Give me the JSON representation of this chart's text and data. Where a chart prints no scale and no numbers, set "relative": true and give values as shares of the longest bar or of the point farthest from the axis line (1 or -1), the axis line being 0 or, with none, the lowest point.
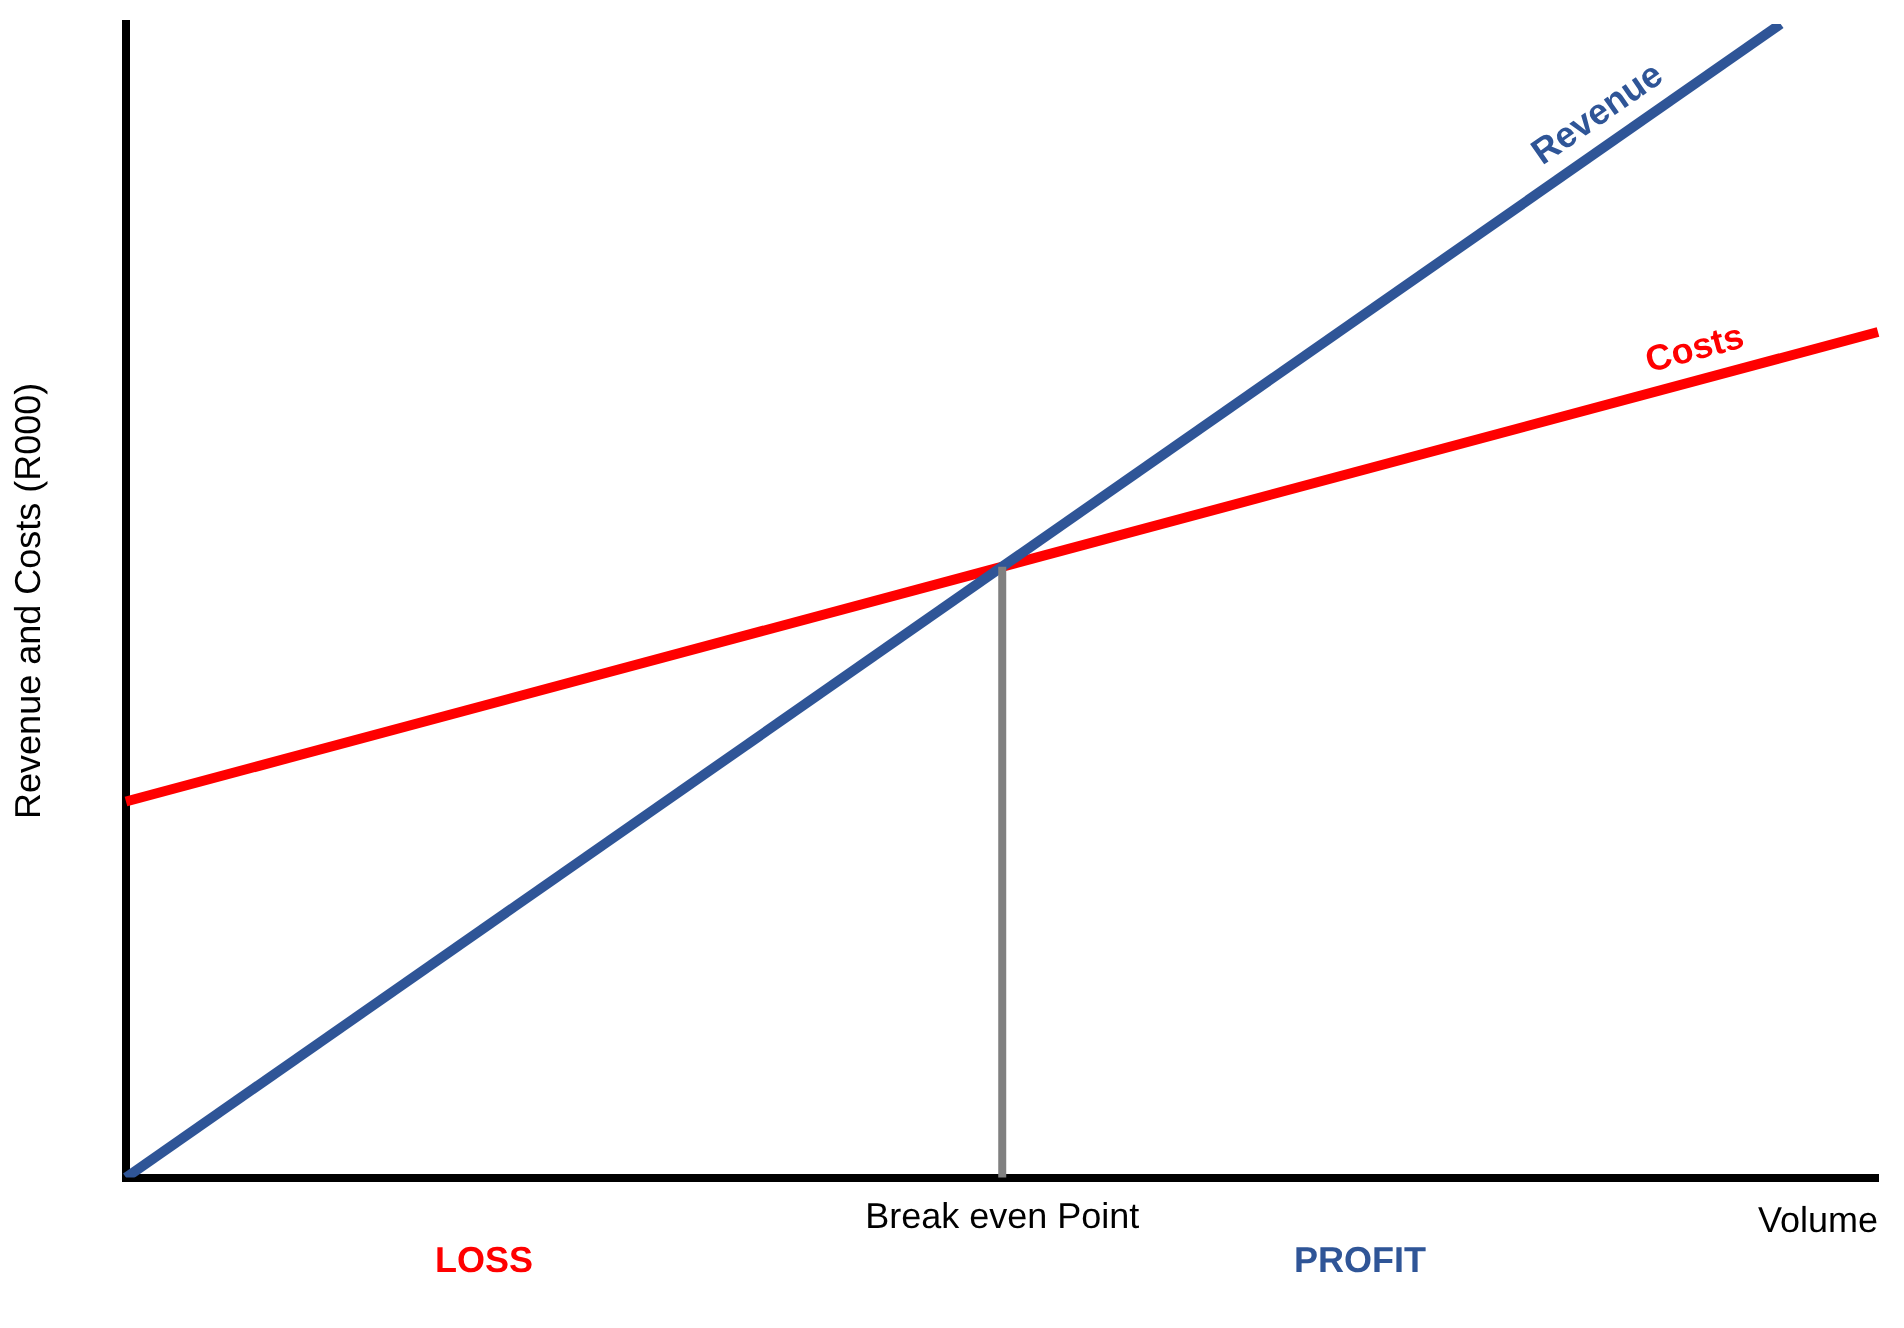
{
  "chart_data": {
    "type": "line",
    "relative": true,
    "ylabel": "Revenue and Costs (R000)",
    "xlabel": "Volume",
    "categories": [
      null,
      null,
      null,
      null,
      null,
      null,
      null,
      null,
      null,
      null,
      null,
      null,
      null,
      null,
      null,
      null,
      null,
      null,
      null
    ],
    "series": [
      {
        "name": "Revenue",
        "color": "#2f5597",
        "values": [
          0,
          null,
          null,
          null,
          null,
          null,
          null,
          null,
          null,
          null,
          null,
          null,
          null,
          null,
          null,
          null,
          null,
          1,
          null
        ]
      },
      {
        "name": "Costs",
        "color": "#ff0000",
        "values": [
          0.326,
          null,
          null,
          null,
          null,
          null,
          null,
          null,
          null,
          null,
          null,
          null,
          null,
          null,
          null,
          null,
          null,
          null,
          0.733
        ]
      }
    ],
    "annotations": [
      "Break even Point",
      "LOSS",
      "PROFIT"
    ],
    "grid": false,
    "legend": false,
    "marker": "none",
    "line_style": "solid"
  }
}
